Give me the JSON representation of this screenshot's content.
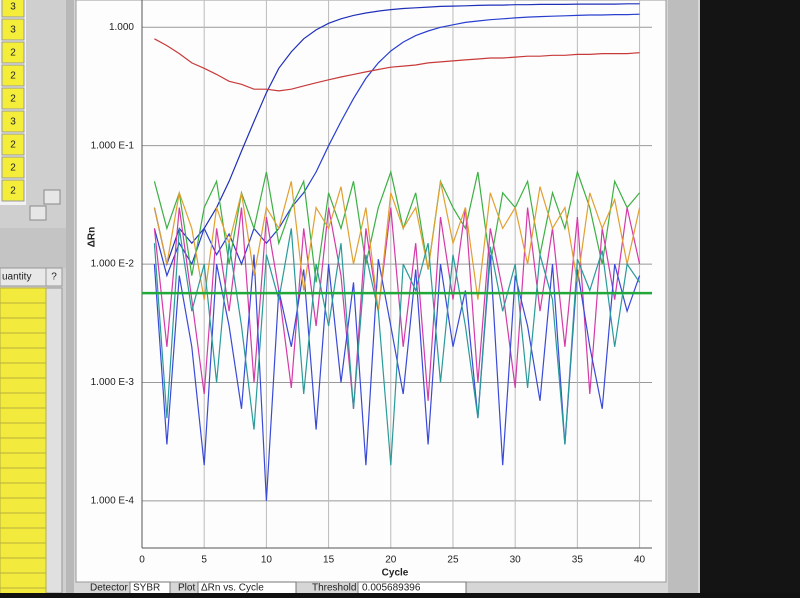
{
  "left_table": {
    "cells": [
      "3",
      "3",
      "2",
      "2",
      "2",
      "3",
      "2",
      "2",
      "2"
    ],
    "header": "uantity",
    "help": "?"
  },
  "chart_data": {
    "type": "line",
    "x": [
      1,
      2,
      3,
      4,
      5,
      6,
      7,
      8,
      9,
      10,
      11,
      12,
      13,
      14,
      15,
      16,
      17,
      18,
      19,
      20,
      21,
      22,
      23,
      24,
      25,
      26,
      27,
      28,
      29,
      30,
      31,
      32,
      33,
      34,
      35,
      36,
      37,
      38,
      39,
      40
    ],
    "series": [
      {
        "color": "#1f2fb8",
        "values": [
          0.03,
          0.01,
          0.02,
          0.015,
          0.02,
          0.03,
          0.05,
          0.09,
          0.16,
          0.28,
          0.45,
          0.62,
          0.8,
          0.95,
          1.08,
          1.18,
          1.26,
          1.32,
          1.37,
          1.41,
          1.44,
          1.46,
          1.48,
          1.5,
          1.51,
          1.52,
          1.53,
          1.54,
          1.54,
          1.55,
          1.55,
          1.56,
          1.56,
          1.56,
          1.57,
          1.57,
          1.57,
          1.57,
          1.58,
          1.58
        ]
      },
      {
        "color": "#2a3fd0",
        "values": [
          0.02,
          0.008,
          0.015,
          0.01,
          0.02,
          0.012,
          0.018,
          0.01,
          0.02,
          0.015,
          0.02,
          0.03,
          0.04,
          0.06,
          0.1,
          0.16,
          0.25,
          0.37,
          0.5,
          0.63,
          0.75,
          0.85,
          0.93,
          1.0,
          1.05,
          1.1,
          1.13,
          1.16,
          1.18,
          1.2,
          1.22,
          1.23,
          1.24,
          1.25,
          1.26,
          1.27,
          1.27,
          1.28,
          1.28,
          1.29
        ]
      },
      {
        "color": "#c83a3a",
        "values": [
          0.8,
          0.7,
          0.6,
          0.5,
          0.45,
          0.4,
          0.35,
          0.33,
          0.3,
          0.3,
          0.29,
          0.3,
          0.32,
          0.34,
          0.36,
          0.38,
          0.4,
          0.42,
          0.44,
          0.46,
          0.47,
          0.48,
          0.5,
          0.51,
          0.52,
          0.53,
          0.54,
          0.55,
          0.55,
          0.56,
          0.57,
          0.57,
          0.58,
          0.58,
          0.59,
          0.59,
          0.6,
          0.6,
          0.6,
          0.61
        ]
      },
      {
        "color": "#3cb043",
        "values": [
          0.05,
          0.02,
          0.04,
          0.008,
          0.03,
          0.05,
          0.01,
          0.04,
          0.02,
          0.06,
          0.015,
          0.03,
          0.05,
          0.007,
          0.04,
          0.02,
          0.05,
          0.01,
          0.03,
          0.06,
          0.02,
          0.04,
          0.009,
          0.05,
          0.03,
          0.02,
          0.06,
          0.01,
          0.04,
          0.03,
          0.05,
          0.012,
          0.04,
          0.02,
          0.06,
          0.03,
          0.01,
          0.05,
          0.03,
          0.04
        ]
      },
      {
        "color": "#d43aa8",
        "values": [
          0.02,
          0.002,
          0.03,
          0.005,
          0.0008,
          0.02,
          0.004,
          0.03,
          0.001,
          0.025,
          0.006,
          0.0009,
          0.02,
          0.003,
          0.03,
          0.008,
          0.0006,
          0.02,
          0.004,
          0.03,
          0.002,
          0.015,
          0.0007,
          0.025,
          0.005,
          0.03,
          0.001,
          0.02,
          0.006,
          0.0009,
          0.03,
          0.004,
          0.02,
          0.002,
          0.025,
          0.0008,
          0.02,
          0.005,
          0.03,
          0.01
        ]
      },
      {
        "color": "#3a4ad8",
        "values": [
          0.01,
          0.0003,
          0.008,
          0.002,
          0.0002,
          0.01,
          0.003,
          0.0006,
          0.012,
          0.0001,
          0.006,
          0.002,
          0.009,
          0.0004,
          0.01,
          0.001,
          0.007,
          0.0002,
          0.011,
          0.003,
          0.0008,
          0.009,
          0.0003,
          0.01,
          0.002,
          0.006,
          0.0005,
          0.012,
          0.0002,
          0.008,
          0.003,
          0.0007,
          0.01,
          0.0003,
          0.009,
          0.002,
          0.0006,
          0.01,
          0.004,
          0.008
        ]
      },
      {
        "color": "#e0a030",
        "values": [
          0.03,
          0.01,
          0.04,
          0.02,
          0.005,
          0.03,
          0.015,
          0.04,
          0.008,
          0.03,
          0.02,
          0.05,
          0.006,
          0.03,
          0.02,
          0.045,
          0.01,
          0.03,
          0.004,
          0.04,
          0.02,
          0.03,
          0.009,
          0.05,
          0.015,
          0.03,
          0.005,
          0.04,
          0.02,
          0.03,
          0.01,
          0.045,
          0.02,
          0.03,
          0.007,
          0.04,
          0.02,
          0.035,
          0.01,
          0.03
        ]
      },
      {
        "color": "#2a9a9a",
        "values": [
          0.015,
          0.0005,
          0.02,
          0.004,
          0.01,
          0.001,
          0.015,
          0.003,
          0.0004,
          0.012,
          0.005,
          0.02,
          0.0008,
          0.01,
          0.003,
          0.015,
          0.0006,
          0.012,
          0.004,
          0.0002,
          0.01,
          0.006,
          0.015,
          0.001,
          0.012,
          0.003,
          0.0005,
          0.014,
          0.004,
          0.01,
          0.0009,
          0.012,
          0.005,
          0.0003,
          0.011,
          0.006,
          0.013,
          0.002,
          0.01,
          0.007
        ]
      }
    ],
    "xlim": [
      0,
      41
    ],
    "ylim": [
      4e-05,
      1.7
    ],
    "log_y": true,
    "xticks": [
      0,
      5,
      10,
      15,
      20,
      25,
      30,
      35,
      40
    ],
    "yticks": [
      {
        "value": 1,
        "label": "1.000"
      },
      {
        "value": 0.1,
        "label": "1.000 E-1"
      },
      {
        "value": 0.01,
        "label": "1.000 E-2"
      },
      {
        "value": 0.001,
        "label": "1.000 E-3"
      },
      {
        "value": 0.0001,
        "label": "1.000 E-4"
      }
    ],
    "xlabel": "Cycle",
    "ylabel": "ΔRn",
    "grid": true,
    "threshold": 0.005689396,
    "threshold_color": "#22a838"
  },
  "controls": {
    "detector_label": "Detector",
    "detector": "SYBR",
    "plot_label": "Plot",
    "plot": "ΔRn vs. Cycle",
    "threshold_label": "Threshold"
  }
}
